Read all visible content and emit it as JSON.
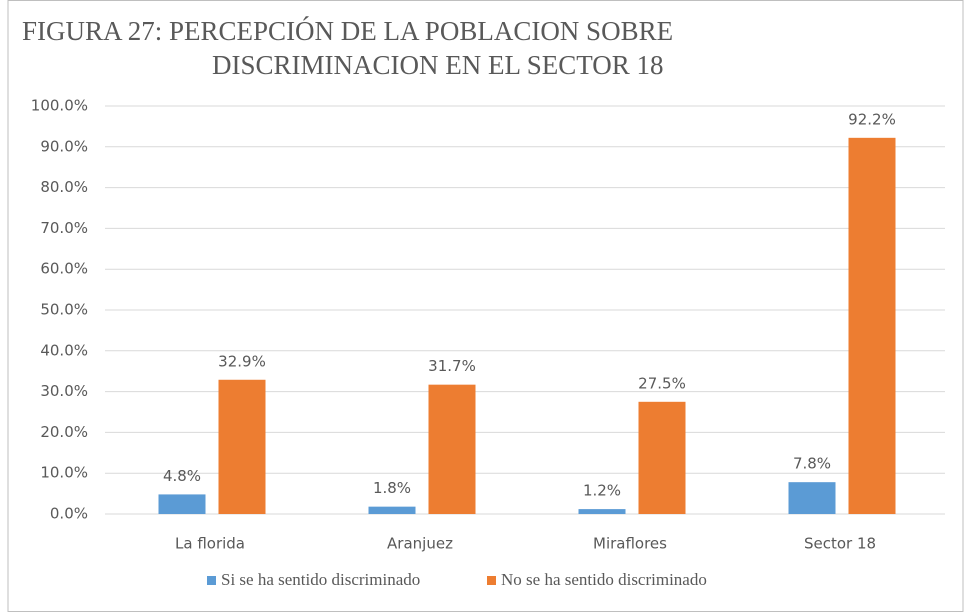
{
  "chart_data": {
    "type": "bar",
    "title": [
      "FIGURA 27: PERCEPCIÓN DE LA POBLACION SOBRE",
      "DISCRIMINACION EN EL SECTOR 18"
    ],
    "categories": [
      "La florida",
      "Aranjuez",
      "Miraflores",
      "Sector 18"
    ],
    "series": [
      {
        "name": "Si se ha sentido discriminado",
        "color": "#5b9bd5",
        "values": [
          4.8,
          1.8,
          1.2,
          7.8
        ],
        "value_labels": [
          "4.8%",
          "1.8%",
          "1.2%",
          "7.8%"
        ]
      },
      {
        "name": "No se ha sentido discriminado",
        "color": "#ed7d31",
        "values": [
          32.9,
          31.7,
          27.5,
          92.2
        ],
        "value_labels": [
          "32.9%",
          "31.7%",
          "27.5%",
          "92.2%"
        ]
      }
    ],
    "ylim": [
      0,
      100
    ],
    "yticks": [
      {
        "value": 0,
        "label": "0.0%"
      },
      {
        "value": 10,
        "label": "10.0%"
      },
      {
        "value": 20,
        "label": "20.0%"
      },
      {
        "value": 30,
        "label": "30.0%"
      },
      {
        "value": 40,
        "label": "40.0%"
      },
      {
        "value": 50,
        "label": "50.0%"
      },
      {
        "value": 60,
        "label": "60.0%"
      },
      {
        "value": 70,
        "label": "70.0%"
      },
      {
        "value": 80,
        "label": "80.0%"
      },
      {
        "value": 90,
        "label": "90.0%"
      },
      {
        "value": 100,
        "label": "100.0%"
      }
    ],
    "grid": true,
    "legend": "bottom"
  }
}
